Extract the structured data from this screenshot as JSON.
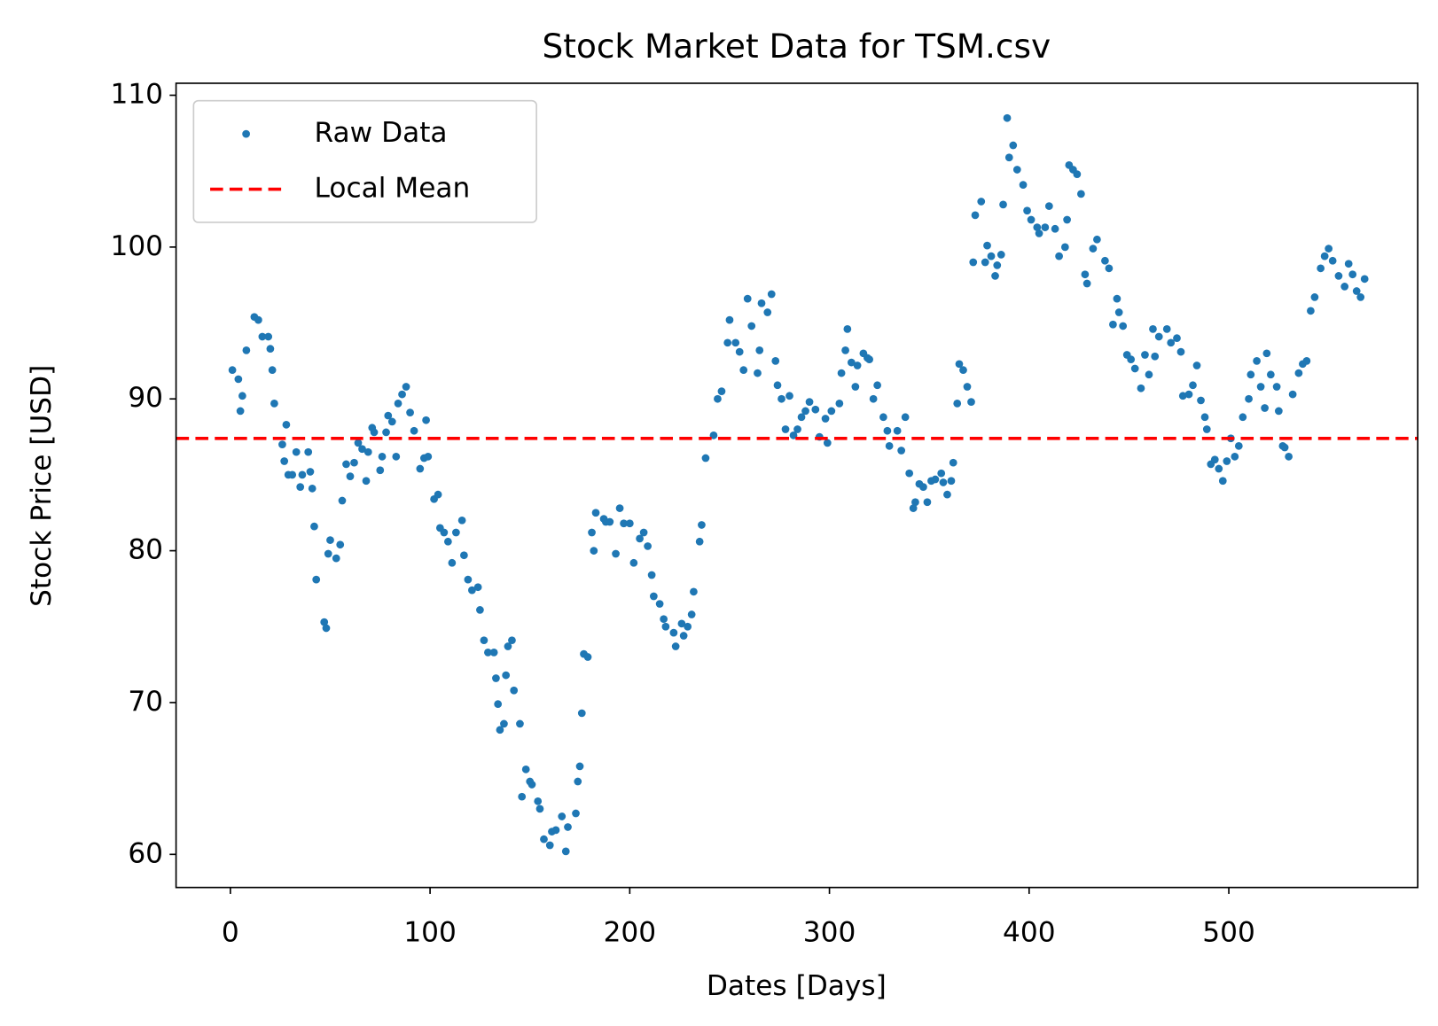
{
  "chart_data": {
    "type": "scatter",
    "title": "Stock Market Data for TSM.csv",
    "x_label": "Dates [Days]",
    "y_label": "Stock Price [USD]",
    "x": [
      1,
      4,
      5,
      6,
      8,
      12,
      14,
      16,
      19,
      20,
      21,
      22,
      26,
      27,
      28,
      29,
      31,
      33,
      35,
      36,
      39,
      40,
      41,
      42,
      43,
      47,
      48,
      49,
      50,
      53,
      55,
      56,
      58,
      60,
      62,
      64,
      66,
      68,
      69,
      71,
      72,
      75,
      76,
      78,
      79,
      81,
      83,
      84,
      86,
      88,
      90,
      92,
      95,
      97,
      98,
      99,
      102,
      104,
      105,
      107,
      109,
      111,
      113,
      116,
      117,
      119,
      121,
      124,
      125,
      127,
      129,
      132,
      133,
      134,
      135,
      137,
      138,
      139,
      141,
      142,
      145,
      146,
      148,
      150,
      151,
      154,
      155,
      157,
      160,
      161,
      163,
      166,
      168,
      169,
      173,
      174,
      175,
      176,
      177,
      179,
      181,
      182,
      183,
      187,
      188,
      190,
      193,
      195,
      197,
      200,
      202,
      205,
      207,
      209,
      211,
      212,
      215,
      217,
      218,
      222,
      223,
      226,
      227,
      229,
      231,
      232,
      235,
      236,
      238,
      242,
      244,
      246,
      249,
      250,
      253,
      255,
      257,
      259,
      261,
      264,
      265,
      266,
      269,
      271,
      273,
      274,
      276,
      278,
      280,
      282,
      284,
      286,
      288,
      290,
      293,
      295,
      298,
      299,
      301,
      305,
      306,
      308,
      309,
      311,
      313,
      314,
      317,
      319,
      320,
      322,
      324,
      327,
      329,
      330,
      334,
      336,
      338,
      340,
      342,
      343,
      345,
      347,
      349,
      351,
      353,
      356,
      357,
      359,
      361,
      362,
      364,
      365,
      367,
      369,
      371,
      372,
      373,
      376,
      378,
      379,
      381,
      383,
      384,
      386,
      387,
      389,
      390,
      392,
      394,
      397,
      399,
      401,
      404,
      405,
      408,
      410,
      413,
      415,
      418,
      419,
      420,
      422,
      424,
      426,
      428,
      429,
      432,
      434,
      438,
      440,
      442,
      444,
      445,
      447,
      449,
      451,
      453,
      456,
      458,
      460,
      462,
      463,
      465,
      469,
      471,
      474,
      476,
      477,
      480,
      482,
      484,
      486,
      488,
      489,
      491,
      493,
      495,
      497,
      499,
      501,
      503,
      505,
      507,
      510,
      511,
      514,
      516,
      518,
      519,
      521,
      524,
      525,
      527,
      528,
      530,
      532,
      535,
      537,
      539,
      541,
      543,
      546,
      548,
      550,
      552,
      555,
      558,
      560,
      562,
      564,
      566,
      568
    ],
    "series": [
      {
        "name": "Raw Data",
        "color": "#1f77b4",
        "values": [
          91.9,
          91.3,
          89.2,
          90.2,
          93.2,
          95.4,
          95.2,
          94.1,
          94.1,
          93.3,
          91.9,
          89.7,
          87.0,
          85.9,
          88.3,
          85.0,
          85.0,
          86.5,
          84.2,
          85.0,
          86.5,
          85.2,
          84.1,
          81.6,
          78.1,
          75.3,
          74.9,
          79.8,
          80.7,
          79.5,
          80.4,
          83.3,
          85.7,
          84.9,
          85.8,
          87.1,
          86.7,
          84.6,
          86.5,
          88.1,
          87.8,
          85.3,
          86.2,
          87.8,
          88.9,
          88.5,
          86.2,
          89.7,
          90.3,
          90.8,
          89.1,
          87.9,
          85.4,
          86.1,
          88.6,
          86.2,
          83.4,
          83.7,
          81.5,
          81.2,
          80.6,
          79.2,
          81.2,
          82.0,
          79.7,
          78.1,
          77.4,
          77.6,
          76.1,
          74.1,
          73.3,
          73.3,
          71.6,
          69.9,
          68.2,
          68.6,
          71.8,
          73.7,
          74.1,
          70.8,
          68.6,
          63.8,
          65.6,
          64.8,
          64.6,
          63.5,
          63.0,
          61.0,
          60.6,
          61.5,
          61.6,
          62.5,
          60.2,
          61.8,
          62.7,
          64.8,
          65.8,
          69.3,
          73.2,
          73.0,
          81.2,
          80.0,
          82.5,
          82.1,
          81.9,
          81.9,
          79.8,
          82.8,
          81.8,
          81.8,
          79.2,
          80.8,
          81.2,
          80.3,
          78.4,
          77.0,
          76.5,
          75.5,
          75.0,
          74.6,
          73.7,
          75.2,
          74.4,
          75.0,
          75.8,
          77.3,
          80.6,
          81.7,
          86.1,
          87.6,
          90.0,
          90.5,
          93.7,
          95.2,
          93.7,
          93.1,
          91.9,
          96.6,
          94.8,
          91.7,
          93.2,
          96.3,
          95.7,
          96.9,
          92.5,
          90.9,
          90.0,
          88.0,
          90.2,
          87.6,
          88.0,
          88.8,
          89.2,
          89.8,
          89.3,
          87.5,
          88.7,
          87.1,
          89.2,
          89.7,
          91.7,
          93.2,
          94.6,
          92.4,
          90.8,
          92.2,
          93.0,
          92.7,
          92.6,
          90.0,
          90.9,
          88.8,
          87.9,
          86.9,
          87.9,
          86.6,
          88.8,
          85.1,
          82.8,
          83.2,
          84.4,
          84.2,
          83.2,
          84.6,
          84.7,
          85.1,
          84.5,
          83.7,
          84.6,
          85.8,
          89.7,
          92.3,
          91.9,
          90.8,
          89.8,
          99.0,
          102.1,
          103.0,
          99.0,
          100.1,
          99.4,
          98.1,
          98.8,
          99.5,
          102.8,
          108.5,
          105.9,
          106.7,
          105.1,
          104.1,
          102.4,
          101.8,
          101.3,
          100.9,
          101.3,
          102.7,
          101.2,
          99.4,
          100.0,
          101.8,
          105.4,
          105.1,
          104.8,
          103.5,
          98.2,
          97.6,
          99.9,
          100.5,
          99.1,
          98.6,
          94.9,
          96.6,
          95.7,
          94.8,
          92.9,
          92.6,
          92.0,
          90.7,
          92.9,
          91.6,
          94.6,
          92.8,
          94.1,
          94.6,
          93.7,
          94.0,
          93.1,
          90.2,
          90.3,
          90.9,
          92.2,
          89.9,
          88.8,
          88.0,
          85.7,
          86.0,
          85.4,
          84.6,
          85.9,
          87.4,
          86.2,
          86.9,
          88.8,
          90.0,
          91.6,
          92.5,
          90.8,
          89.4,
          93.0,
          91.6,
          90.8,
          89.2,
          86.9,
          86.8,
          86.2,
          90.3,
          91.7,
          92.3,
          92.5,
          95.8,
          96.7,
          98.6,
          99.4,
          99.9,
          99.1,
          98.1,
          97.4,
          98.9,
          98.2,
          97.1,
          96.7,
          97.9
        ]
      },
      {
        "name": "Local Mean",
        "color": "#ff0000",
        "style": "hline",
        "value": 87.4
      }
    ],
    "xlim": [
      -27.2,
      594.6
    ],
    "ylim": [
      57.82,
      110.79
    ],
    "xticks": [
      0,
      100,
      200,
      300,
      400,
      500
    ],
    "yticks": [
      60,
      70,
      80,
      90,
      100,
      110
    ],
    "grid": false,
    "legend": "upper left"
  }
}
